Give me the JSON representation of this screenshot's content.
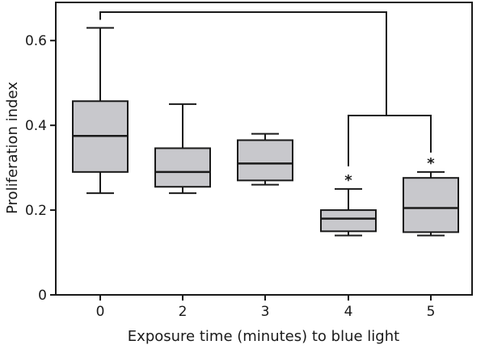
{
  "chart_data": {
    "type": "box",
    "xlabel": "Exposure time (minutes) to blue light",
    "ylabel": "Proliferation index",
    "ylim": [
      0,
      0.69
    ],
    "yticks": [
      0,
      0.2,
      0.4,
      0.6
    ],
    "ytick_labels": [
      "0",
      "0.2",
      "0.4",
      "0.6"
    ],
    "categories": [
      "0",
      "2",
      "3",
      "4",
      "5"
    ],
    "boxes": [
      {
        "category": "0",
        "min": 0.24,
        "q1": 0.29,
        "median": 0.375,
        "q3": 0.457,
        "max": 0.63,
        "significance": ""
      },
      {
        "category": "2",
        "min": 0.24,
        "q1": 0.255,
        "median": 0.29,
        "q3": 0.346,
        "max": 0.45,
        "significance": ""
      },
      {
        "category": "3",
        "min": 0.26,
        "q1": 0.27,
        "median": 0.31,
        "q3": 0.365,
        "max": 0.38,
        "significance": ""
      },
      {
        "category": "4",
        "min": 0.14,
        "q1": 0.15,
        "median": 0.18,
        "q3": 0.2,
        "max": 0.25,
        "significance": "*"
      },
      {
        "category": "5",
        "min": 0.14,
        "q1": 0.148,
        "median": 0.205,
        "q3": 0.276,
        "max": 0.29,
        "significance": "*"
      }
    ],
    "box_fill": "#c8c8cc",
    "line_color": "#1a1a1a",
    "grid": false,
    "legend": "none"
  }
}
